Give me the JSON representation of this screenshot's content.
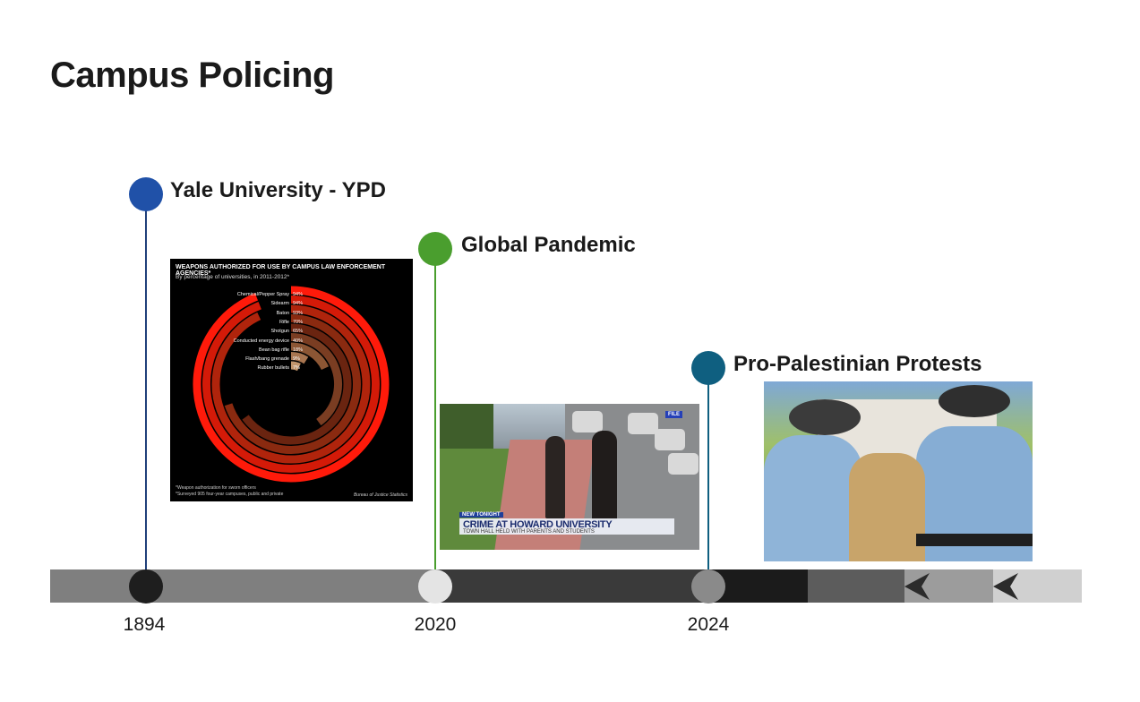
{
  "title": "Campus Policing",
  "events": [
    {
      "label": "Yale University - YPD",
      "color": "#2051a8",
      "year": "1894",
      "node_color": "#1e1e1e"
    },
    {
      "label": "Global Pandemic",
      "color": "#4a9e2e",
      "year": "2020",
      "node_color": "#e4e4e4"
    },
    {
      "label": "Pro-Palestinian Protests",
      "color": "#0f5f80",
      "year": "2024",
      "node_color": "#8a8a8a"
    }
  ],
  "chart_image": {
    "title": "WEAPONS AUTHORIZED FOR USE BY CAMPUS LAW ENFORCEMENT AGENCIES*",
    "subtitle": "By percentage of universities, in 2011-2012*",
    "rows": [
      {
        "name": "Chemical/Pepper Spray",
        "value": "94%"
      },
      {
        "name": "Sidearm",
        "value": "94%"
      },
      {
        "name": "Baton",
        "value": "93%"
      },
      {
        "name": "Rifle",
        "value": "70%"
      },
      {
        "name": "Shotgun",
        "value": "65%"
      },
      {
        "name": "Conducted energy device",
        "value": "40%"
      },
      {
        "name": "Bean bag rifle",
        "value": "18%"
      },
      {
        "name": "Flash/bang grenade",
        "value": "9%"
      },
      {
        "name": "Rubber bullets",
        "value": "7%"
      }
    ],
    "footnote1": "*Weapon authorization for sworn officers",
    "footnote2": "*Surveyed 905 four-year campuses, public and private",
    "source": "Bureau of Justice Statistics"
  },
  "news_image": {
    "tag": "NEW TONIGHT",
    "file_tag": "FILE",
    "headline": "CRIME AT HOWARD UNIVERSITY",
    "subline": "TOWN HALL HELD WITH PARENTS AND STUDENTS"
  }
}
